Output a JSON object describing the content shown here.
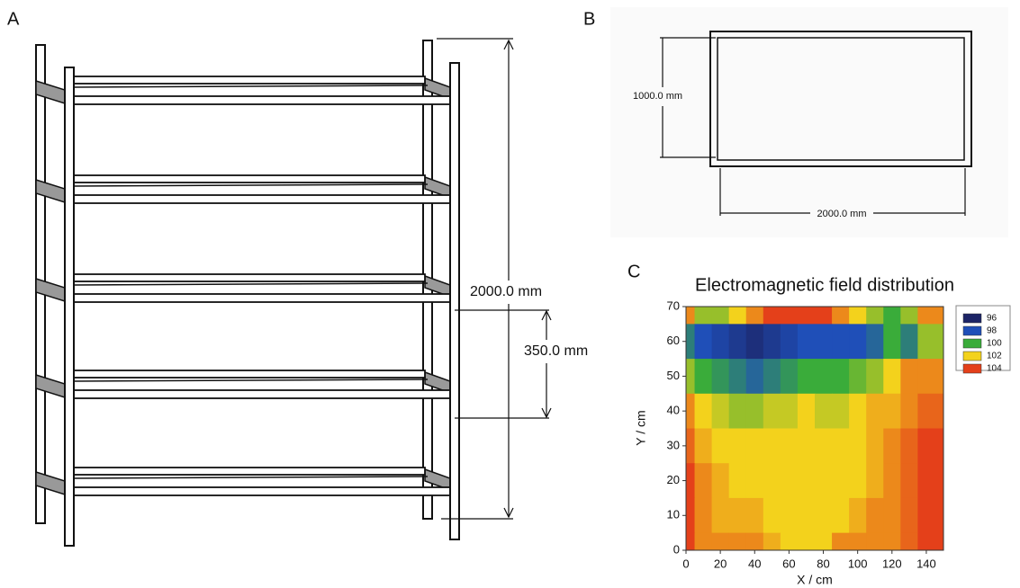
{
  "panel_labels": [
    "A",
    "B",
    "C"
  ],
  "diagram_a": {
    "height_label": "2000.0 mm",
    "spacing_label": "350.0 mm"
  },
  "diagram_b": {
    "depth_label": "1000.0 mm",
    "width_label": "2000.0 mm"
  },
  "chart_data": {
    "type": "contour",
    "title": "Electromagnetic field distribution",
    "xlabel": "X / cm",
    "ylabel": "Y / cm",
    "xlim": [
      0,
      150
    ],
    "ylim": [
      0,
      70
    ],
    "xticks": [
      0,
      20,
      40,
      60,
      80,
      100,
      120,
      140
    ],
    "yticks": [
      0,
      10,
      20,
      30,
      40,
      50,
      60,
      70
    ],
    "x": [
      0,
      10,
      20,
      30,
      40,
      50,
      60,
      70,
      80,
      90,
      100,
      110,
      120,
      130,
      140
    ],
    "y": [
      70,
      60,
      50,
      40,
      30,
      20,
      10,
      0
    ],
    "z": [
      [
        103,
        101,
        101,
        102,
        103,
        104,
        104,
        104,
        104,
        103,
        102,
        101,
        100,
        101,
        103
      ],
      [
        99,
        98,
        97.5,
        97,
        96.5,
        97,
        97.5,
        98,
        98,
        98,
        98,
        98.5,
        100,
        99,
        101
      ],
      [
        101,
        100,
        99.5,
        99,
        98.5,
        99,
        99.5,
        100,
        100,
        100,
        100.5,
        101,
        102,
        103,
        103
      ],
      [
        103,
        102,
        101.5,
        101,
        101,
        101.5,
        101.5,
        102,
        101.5,
        101.5,
        102,
        102.5,
        102.5,
        103,
        103.5
      ],
      [
        103.5,
        102.5,
        102,
        102,
        102,
        102,
        102,
        102,
        102,
        102,
        102,
        102.5,
        103,
        103.5,
        104
      ],
      [
        104,
        103,
        102.5,
        102,
        102,
        102,
        102,
        102,
        102,
        102,
        102,
        102.5,
        103,
        103.5,
        104
      ],
      [
        104,
        103,
        102.5,
        102.5,
        102.5,
        102,
        102,
        102,
        102,
        102,
        102.5,
        103,
        103,
        103.5,
        104
      ],
      [
        104,
        103,
        103,
        103,
        103,
        102.5,
        102,
        102,
        102,
        103,
        103,
        103,
        103,
        103.5,
        104
      ]
    ],
    "levels": [
      96,
      98,
      100,
      102,
      104
    ],
    "colors": [
      "#1c2466",
      "#1f4fb8",
      "#3aac3a",
      "#f3d21c",
      "#e4401a"
    ]
  }
}
